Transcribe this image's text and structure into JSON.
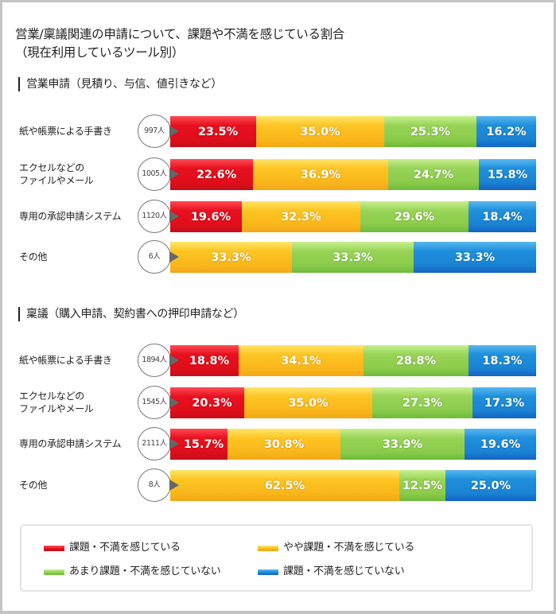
{
  "title_line1": "営業/稟議関連の申請について、課題や不満を感じている割合",
  "title_line2": "（現在利用しているツール別）",
  "sections": [
    {
      "heading": "営業申請（見積り、与信、値引きなど）",
      "rows": [
        {
          "label": "紙や帳票による手書き",
          "n": "997人",
          "values": [
            "23.5%",
            "35.0%",
            "25.3%",
            "16.2%"
          ]
        },
        {
          "label": "エクセルなどの\nファイルやメール",
          "n": "1005人",
          "values": [
            "22.6%",
            "36.9%",
            "24.7%",
            "15.8%"
          ]
        },
        {
          "label": "専用の承認申請システム",
          "n": "1120人",
          "values": [
            "19.6%",
            "32.3%",
            "29.6%",
            "18.4%"
          ]
        },
        {
          "label": "その他",
          "n": "6人",
          "values": [
            "",
            "33.3%",
            "33.3%",
            "33.3%"
          ]
        }
      ]
    },
    {
      "heading": "稟議（購入申請、契約書への押印申請など）",
      "rows": [
        {
          "label": "紙や帳票による手書き",
          "n": "1894人",
          "values": [
            "18.8%",
            "34.1%",
            "28.8%",
            "18.3%"
          ]
        },
        {
          "label": "エクセルなどの\nファイルやメール",
          "n": "1545人",
          "values": [
            "20.3%",
            "35.0%",
            "27.3%",
            "17.3%"
          ]
        },
        {
          "label": "専用の承認申請システム",
          "n": "2111人",
          "values": [
            "15.7%",
            "30.8%",
            "33.9%",
            "19.6%"
          ]
        },
        {
          "label": "その他",
          "n": "8人",
          "values": [
            "",
            "62.5%",
            "12.5%",
            "25.0%"
          ]
        }
      ]
    }
  ],
  "legend": [
    {
      "label": "課題・不満を感じている",
      "color": "#e00d1b"
    },
    {
      "label": "やや課題・不満を感じている",
      "color": "#f9b61a"
    },
    {
      "label": "あまり課題・不満を感じていない",
      "color": "#8bcb4b"
    },
    {
      "label": "課題・不満を感じていない",
      "color": "#1a83d3"
    }
  ],
  "chart_data": {
    "type": "bar",
    "orientation": "horizontal-stacked-100",
    "title": "営業/稟議関連の申請について、課題や不満を感じている割合（現在利用しているツール別）",
    "series_names": [
      "課題・不満を感じている",
      "やや課題・不満を感じている",
      "あまり課題・不満を感じていない",
      "課題・不満を感じていない"
    ],
    "colors": [
      "#e00d1b",
      "#f9b61a",
      "#8bcb4b",
      "#1a83d3"
    ],
    "groups": [
      {
        "name": "営業申請（見積り、与信、値引きなど）",
        "categories": [
          "紙や帳票による手書き",
          "エクセルなどのファイルやメール",
          "専用の承認申請システム",
          "その他"
        ],
        "n": [
          997,
          1005,
          1120,
          6
        ],
        "series": [
          {
            "name": "課題・不満を感じている",
            "values": [
              23.5,
              22.6,
              19.6,
              0
            ]
          },
          {
            "name": "やや課題・不満を感じている",
            "values": [
              35.0,
              36.9,
              32.3,
              33.3
            ]
          },
          {
            "name": "あまり課題・不満を感じていない",
            "values": [
              25.3,
              24.7,
              29.6,
              33.3
            ]
          },
          {
            "name": "課題・不満を感じていない",
            "values": [
              16.2,
              15.8,
              18.4,
              33.3
            ]
          }
        ]
      },
      {
        "name": "稟議（購入申請、契約書への押印申請など）",
        "categories": [
          "紙や帳票による手書き",
          "エクセルなどのファイルやメール",
          "専用の承認申請システム",
          "その他"
        ],
        "n": [
          1894,
          1545,
          2111,
          8
        ],
        "series": [
          {
            "name": "課題・不満を感じている",
            "values": [
              18.8,
              20.3,
              15.7,
              0
            ]
          },
          {
            "name": "やや課題・不満を感じている",
            "values": [
              34.1,
              35.0,
              30.8,
              62.5
            ]
          },
          {
            "name": "あまり課題・不満を感じていない",
            "values": [
              28.8,
              27.3,
              33.9,
              12.5
            ]
          },
          {
            "name": "課題・不満を感じていない",
            "values": [
              18.3,
              17.3,
              19.6,
              25.0
            ]
          }
        ]
      }
    ],
    "xlabel": "",
    "ylabel": "",
    "xlim": [
      0,
      100
    ],
    "grid": false,
    "legend_position": "bottom"
  }
}
